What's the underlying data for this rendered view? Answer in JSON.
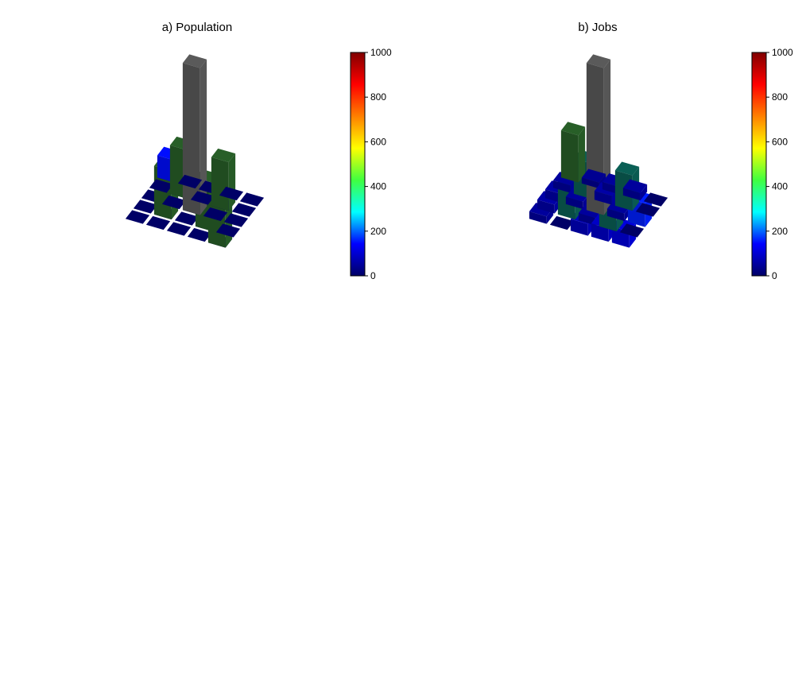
{
  "chart_data": [
    {
      "type": "bar3d",
      "title": "a) Population",
      "colorbar": {
        "min": 0,
        "max": 1000,
        "ticks": [
          0,
          200,
          400,
          600,
          800,
          1000
        ],
        "tick_labels": [
          "0",
          "200",
          "400",
          "600",
          "800",
          "1000"
        ],
        "palette": [
          "#000066",
          "#0000ff",
          "#00ffff",
          "#40ff40",
          "#ffff00",
          "#ff8000",
          "#ff0000",
          "#800000"
        ]
      },
      "grid": {
        "rows": 5,
        "cols": 5
      },
      "bars": [
        {
          "row": 0,
          "col": 0,
          "value": 0
        },
        {
          "row": 0,
          "col": 1,
          "value": 0
        },
        {
          "row": 0,
          "col": 2,
          "value": 0
        },
        {
          "row": 0,
          "col": 3,
          "value": 0
        },
        {
          "row": 0,
          "col": 4,
          "value": 0
        },
        {
          "row": 1,
          "col": 0,
          "value": 0
        },
        {
          "row": 1,
          "col": 1,
          "value": 0
        },
        {
          "row": 1,
          "col": 2,
          "value": 0
        },
        {
          "row": 1,
          "col": 3,
          "value": 0
        },
        {
          "row": 1,
          "col": 4,
          "value": 0
        },
        {
          "row": 2,
          "col": 0,
          "value": 0
        },
        {
          "row": 2,
          "col": 1,
          "value": 0
        },
        {
          "row": 2,
          "col": 2,
          "value": 0
        },
        {
          "row": 2,
          "col": 3,
          "value": 0
        },
        {
          "row": 2,
          "col": 4,
          "value": 0
        },
        {
          "row": 3,
          "col": 0,
          "value": 0
        },
        {
          "row": 3,
          "col": 1,
          "value": 0
        },
        {
          "row": 3,
          "col": 2,
          "value": 0
        },
        {
          "row": 3,
          "col": 3,
          "value": 0
        },
        {
          "row": 3,
          "col": 4,
          "value": 0
        },
        {
          "row": 4,
          "col": 0,
          "value": 0
        },
        {
          "row": 4,
          "col": 1,
          "value": 0
        },
        {
          "row": 4,
          "col": 2,
          "value": 0
        },
        {
          "row": 4,
          "col": 3,
          "value": 0
        },
        {
          "row": 4,
          "col": 4,
          "value": 0
        },
        {
          "row": 0,
          "col": 0,
          "value": 150
        },
        {
          "row": 1,
          "col": 1,
          "value": 330
        },
        {
          "row": 2,
          "col": 2,
          "value": 1000,
          "out_of_range": true
        },
        {
          "row": 3,
          "col": 3,
          "value": 330
        },
        {
          "row": 4,
          "col": 4,
          "value": 330
        },
        {
          "row": 1,
          "col": 3,
          "value": 330
        },
        {
          "row": 3,
          "col": 1,
          "value": 330
        }
      ]
    },
    {
      "type": "bar3d",
      "title": "b) Jobs",
      "colorbar": {
        "min": 0,
        "max": 1000,
        "ticks": [
          0,
          200,
          400,
          600,
          800,
          1000
        ],
        "tick_labels": [
          "0",
          "200",
          "400",
          "600",
          "800",
          "1000"
        ],
        "palette": [
          "#000066",
          "#0000ff",
          "#00ffff",
          "#40ff40",
          "#ffff00",
          "#ff8000",
          "#ff0000",
          "#800000"
        ]
      },
      "grid": {
        "rows": 5,
        "cols": 5
      },
      "bars": [
        {
          "row": 0,
          "col": 0,
          "value": 320
        },
        {
          "row": 0,
          "col": 1,
          "value": 40
        },
        {
          "row": 0,
          "col": 2,
          "value": 50
        },
        {
          "row": 0,
          "col": 3,
          "value": 50
        },
        {
          "row": 0,
          "col": 4,
          "value": 0
        },
        {
          "row": 1,
          "col": 0,
          "value": 50
        },
        {
          "row": 1,
          "col": 1,
          "value": 240
        },
        {
          "row": 1,
          "col": 2,
          "value": 60
        },
        {
          "row": 1,
          "col": 3,
          "value": 240
        },
        {
          "row": 1,
          "col": 4,
          "value": 0
        },
        {
          "row": 2,
          "col": 0,
          "value": 60
        },
        {
          "row": 2,
          "col": 1,
          "value": 50
        },
        {
          "row": 2,
          "col": 2,
          "value": 1000,
          "out_of_range": true
        },
        {
          "row": 2,
          "col": 3,
          "value": 50
        },
        {
          "row": 2,
          "col": 4,
          "value": 160
        },
        {
          "row": 3,
          "col": 0,
          "value": 60
        },
        {
          "row": 3,
          "col": 1,
          "value": 240
        },
        {
          "row": 3,
          "col": 2,
          "value": 50
        },
        {
          "row": 3,
          "col": 3,
          "value": 240
        },
        {
          "row": 3,
          "col": 4,
          "value": 0
        },
        {
          "row": 4,
          "col": 0,
          "value": 50
        },
        {
          "row": 4,
          "col": 1,
          "value": 0
        },
        {
          "row": 4,
          "col": 2,
          "value": 80
        },
        {
          "row": 4,
          "col": 3,
          "value": 90
        },
        {
          "row": 4,
          "col": 4,
          "value": 110
        }
      ]
    }
  ]
}
